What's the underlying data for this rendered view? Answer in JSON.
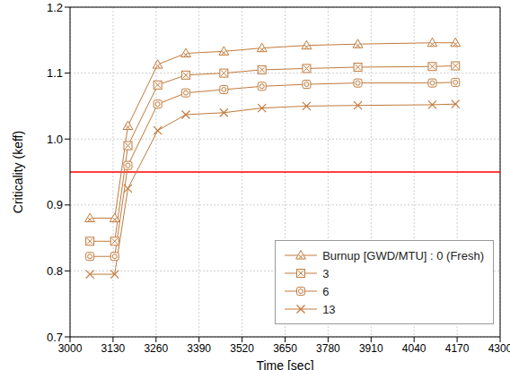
{
  "chart_data": {
    "type": "line",
    "xlabel": "Time [sec]",
    "ylabel": "Criticality (keff)",
    "x": [
      3060,
      3135,
      3175,
      3265,
      3350,
      3465,
      3580,
      3715,
      3870,
      4095,
      4165
    ],
    "xlim": [
      3000,
      4300
    ],
    "xticks": [
      3000,
      3130,
      3260,
      3390,
      3520,
      3650,
      3780,
      3910,
      4040,
      4170,
      4300
    ],
    "ylim": [
      0.7,
      1.2
    ],
    "yticks": [
      0.7,
      0.8,
      0.9,
      {
        "value": 1,
        "label": "1.0"
      },
      1.1,
      1.2
    ],
    "grid": true,
    "legend": "lower right",
    "reference_lines": [
      {
        "value": 0.95,
        "color": "#ff0000"
      }
    ],
    "series": [
      {
        "name": "Burnup [GWD/MTU] : 0 (Fresh)",
        "color": "#c07a3c",
        "marker": "triangle_cross",
        "values": [
          0.88,
          0.88,
          1.02,
          1.113,
          1.13,
          1.133,
          1.138,
          1.142,
          1.144,
          1.146,
          1.146
        ]
      },
      {
        "name": "3",
        "color": "#c07a3c",
        "marker": "square_cross",
        "values": [
          0.845,
          0.845,
          0.99,
          1.082,
          1.097,
          1.1,
          1.105,
          1.107,
          1.109,
          1.11,
          1.111
        ]
      },
      {
        "name": "6",
        "color": "#c07a3c",
        "marker": "circle_cross",
        "values": [
          0.822,
          0.822,
          0.96,
          1.053,
          1.07,
          1.075,
          1.08,
          1.083,
          1.085,
          1.085,
          1.086
        ]
      },
      {
        "name": "13",
        "color": "#c07a3c",
        "marker": "cross",
        "values": [
          0.795,
          0.795,
          0.925,
          1.013,
          1.037,
          1.04,
          1.047,
          1.05,
          1.051,
          1.052,
          1.053
        ]
      }
    ]
  }
}
